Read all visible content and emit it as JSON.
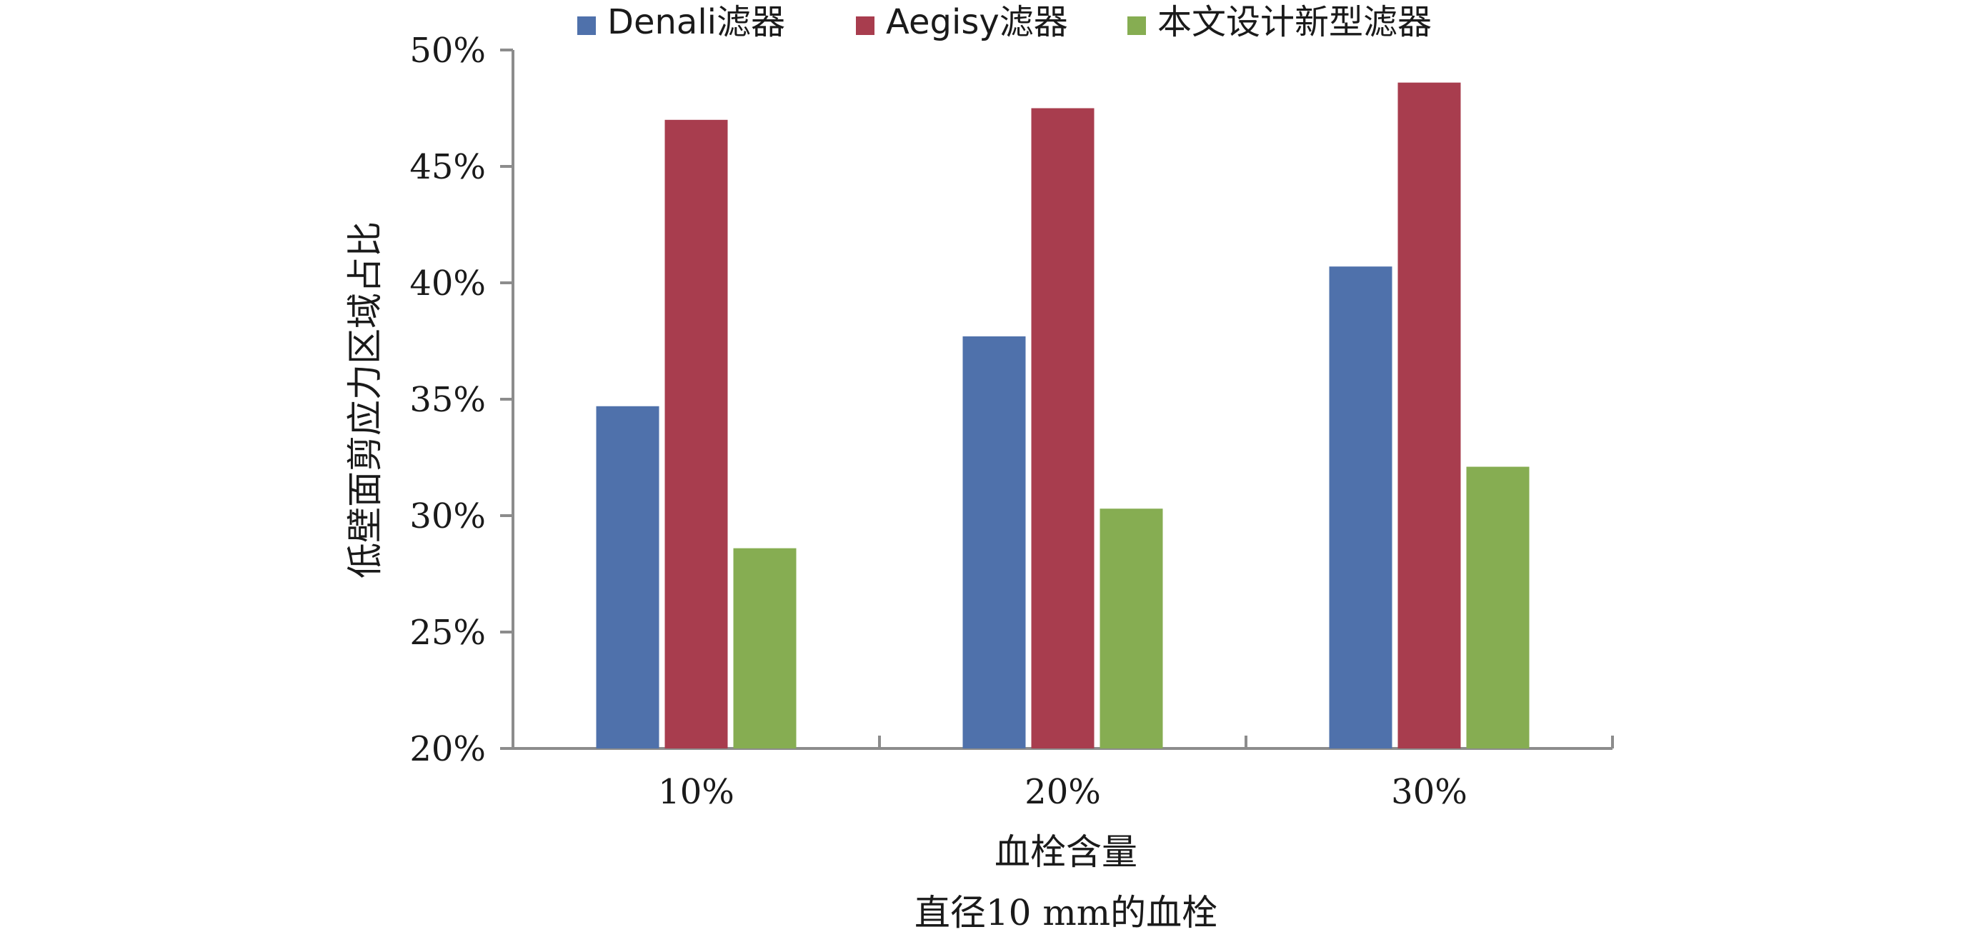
{
  "chart_data": {
    "type": "bar",
    "title": "",
    "caption": "直径10 mm的血栓",
    "xlabel": "血栓含量",
    "ylabel": "低壁面剪应力区域占比",
    "categories": [
      "10%",
      "20%",
      "30%"
    ],
    "ylim": [
      20,
      50
    ],
    "ytick_step": 5,
    "ytick_labels": [
      "20%",
      "25%",
      "30%",
      "35%",
      "40%",
      "45%",
      "50%"
    ],
    "legend_position": "top",
    "grid": false,
    "series": [
      {
        "name": "Denali滤器",
        "color": "#4F71AB",
        "values": [
          34.7,
          37.7,
          40.7
        ]
      },
      {
        "name": "Aegisy滤器",
        "color": "#A83D4E",
        "values": [
          47.0,
          47.5,
          48.6
        ]
      },
      {
        "name": "本文设计新型滤器",
        "color": "#86AD52",
        "values": [
          28.6,
          30.3,
          32.1
        ]
      }
    ]
  }
}
